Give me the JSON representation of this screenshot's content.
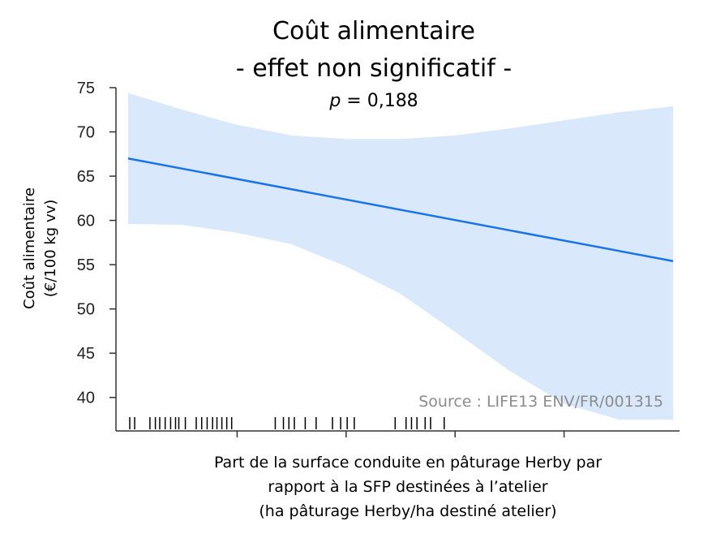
{
  "chart_data": {
    "type": "line",
    "title": "Coût alimentaire",
    "subtitle": "- effet non significatif -",
    "p_label": "p",
    "p_value_text": " = 0,188",
    "ylabel": [
      "Coût alimentaire",
      "(€/100 kg vv)"
    ],
    "xlabel": [
      "Part de la surface conduite en pâturage Herby par",
      "rapport à la SFP destinées à l’atelier",
      "(ha pâturage Herby/ha destiné atelier)"
    ],
    "source": "Source : LIFE13 ENV/FR/001315",
    "ylim": [
      37.5,
      75
    ],
    "yticks": [
      40,
      45,
      50,
      55,
      60,
      65,
      70,
      75
    ],
    "xlim": [
      0,
      1
    ],
    "x_tick_positions": [
      0.2,
      0.4,
      0.6,
      0.8
    ],
    "x_tick_labels_shown": false,
    "series": [
      {
        "x": [
          0,
          1
        ],
        "y": [
          67.0,
          55.4
        ],
        "color": "#1a73e8"
      }
    ],
    "confidence_band": {
      "color": "#d9e9fb",
      "x": [
        0,
        0.1,
        0.2,
        0.3,
        0.4,
        0.5,
        0.6,
        0.7,
        0.8,
        0.9,
        1.0
      ],
      "upper": [
        74.4,
        72.5,
        70.8,
        69.6,
        69.2,
        69.2,
        69.6,
        70.4,
        71.3,
        72.2,
        72.9
      ],
      "lower": [
        59.6,
        59.5,
        58.6,
        57.3,
        54.8,
        51.7,
        47.4,
        43.0,
        39.3,
        37.5,
        37.5
      ]
    },
    "rug_x": [
      0.003,
      0.012,
      0.04,
      0.05,
      0.058,
      0.068,
      0.078,
      0.087,
      0.093,
      0.105,
      0.125,
      0.135,
      0.145,
      0.155,
      0.163,
      0.172,
      0.181,
      0.19,
      0.27,
      0.285,
      0.295,
      0.305,
      0.325,
      0.345,
      0.375,
      0.39,
      0.402,
      0.415,
      0.49,
      0.51,
      0.52,
      0.53,
      0.545,
      0.555,
      0.58
    ]
  }
}
